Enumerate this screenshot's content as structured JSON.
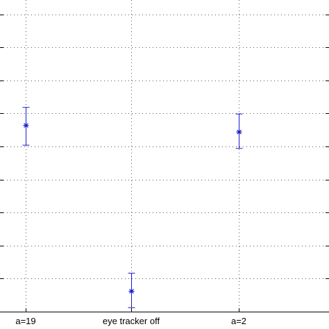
{
  "chart_data": {
    "type": "scatter",
    "categories": [
      "a=19",
      "eye tracker off",
      "a=2"
    ],
    "series": [
      {
        "values": [
          0.62,
          0.115,
          0.6
        ],
        "error_low": [
          0.56,
          0.065,
          0.55
        ],
        "error_high": [
          0.675,
          0.17,
          0.655
        ]
      }
    ],
    "ylim": [
      0,
      1
    ],
    "grid": true,
    "marker": "asterisk",
    "colors": {
      "series": "#1a1acc",
      "axis": "#000000",
      "grid": "#555555"
    }
  }
}
